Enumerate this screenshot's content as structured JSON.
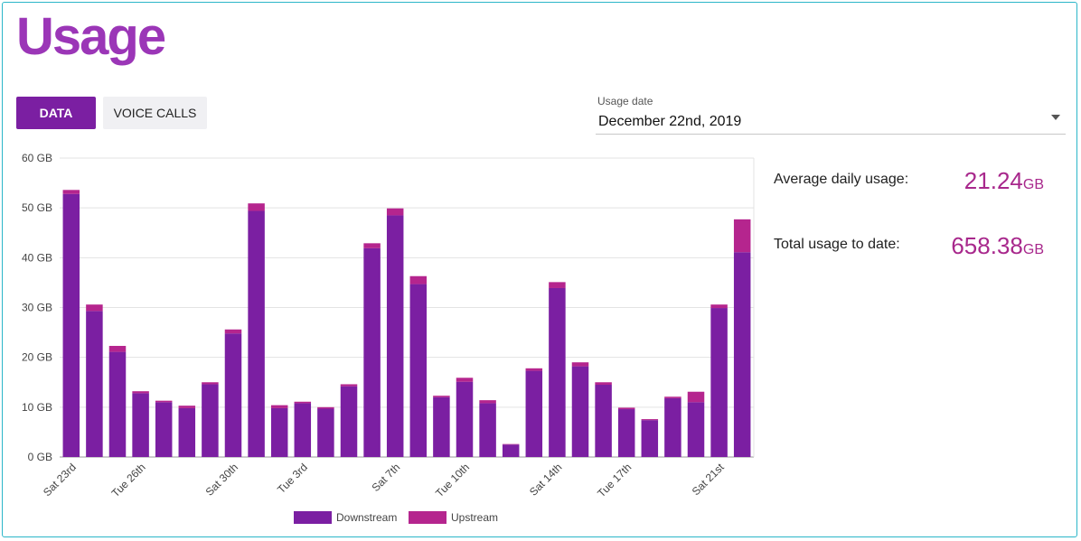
{
  "page": {
    "title": "Usage"
  },
  "tabs": [
    {
      "label": "DATA",
      "active": true
    },
    {
      "label": "VOICE CALLS",
      "active": false
    }
  ],
  "usage_date": {
    "label": "Usage date",
    "value": "December 22nd, 2019"
  },
  "stats": {
    "average": {
      "label": "Average daily usage:",
      "value": "21.24",
      "unit": "GB"
    },
    "total": {
      "label": "Total usage to date:",
      "value": "658.38",
      "unit": "GB"
    }
  },
  "colors": {
    "brand": "#9b36b7",
    "downstream": "#7b1fa2",
    "upstream": "#b5258e",
    "stat_value": "#a8288c"
  },
  "chart_data": {
    "type": "bar",
    "stacked": true,
    "title": "",
    "xlabel": "",
    "ylabel": "",
    "ylim": [
      0,
      60
    ],
    "yticks": [
      "0 GB",
      "10 GB",
      "20 GB",
      "30 GB",
      "40 GB",
      "50 GB",
      "60 GB"
    ],
    "ytick_values": [
      0,
      10,
      20,
      30,
      40,
      50,
      60
    ],
    "grid": true,
    "legend": "bottom",
    "x_tick_labels": [
      {
        "index": 0,
        "label": "Sat 23rd"
      },
      {
        "index": 3,
        "label": "Tue 26th"
      },
      {
        "index": 7,
        "label": "Sat 30th"
      },
      {
        "index": 10,
        "label": "Tue 3rd"
      },
      {
        "index": 14,
        "label": "Sat 7th"
      },
      {
        "index": 17,
        "label": "Tue 10th"
      },
      {
        "index": 21,
        "label": "Sat 14th"
      },
      {
        "index": 24,
        "label": "Tue 17th"
      },
      {
        "index": 28,
        "label": "Sat 21st"
      }
    ],
    "series": [
      {
        "name": "Downstream",
        "color": "#7b1fa2",
        "values": [
          52.8,
          29.3,
          21.1,
          12.8,
          11.0,
          9.8,
          14.6,
          24.8,
          49.4,
          9.8,
          10.8,
          9.7,
          14.2,
          41.9,
          48.5,
          34.7,
          12.0,
          15.1,
          10.8,
          2.5,
          17.3,
          33.9,
          18.2,
          14.5,
          9.6,
          7.4,
          11.8,
          11.0,
          29.9,
          41.1
        ]
      },
      {
        "name": "Upstream",
        "color": "#b5258e",
        "values": [
          0.8,
          1.3,
          1.2,
          0.4,
          0.3,
          0.5,
          0.4,
          0.8,
          1.5,
          0.6,
          0.3,
          0.3,
          0.4,
          1.0,
          1.4,
          1.6,
          0.3,
          0.8,
          0.6,
          0.1,
          0.5,
          1.2,
          0.8,
          0.5,
          0.3,
          0.2,
          0.3,
          2.1,
          0.7,
          6.6
        ]
      }
    ]
  }
}
